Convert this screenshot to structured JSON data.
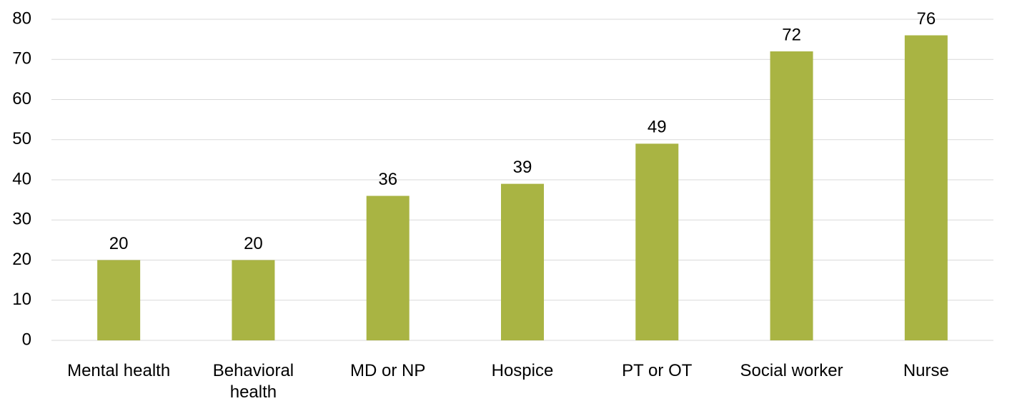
{
  "chart_data": {
    "type": "bar",
    "categories": [
      "Mental health",
      "Behavioral health",
      "MD or NP",
      "Hospice",
      "PT or OT",
      "Social worker",
      "Nurse"
    ],
    "values": [
      20,
      20,
      36,
      39,
      49,
      72,
      76
    ],
    "color": "#a9b443",
    "ylim": [
      0,
      80
    ],
    "yticks": [
      0,
      10,
      20,
      30,
      40,
      50,
      60,
      70,
      80
    ],
    "grid": true
  }
}
